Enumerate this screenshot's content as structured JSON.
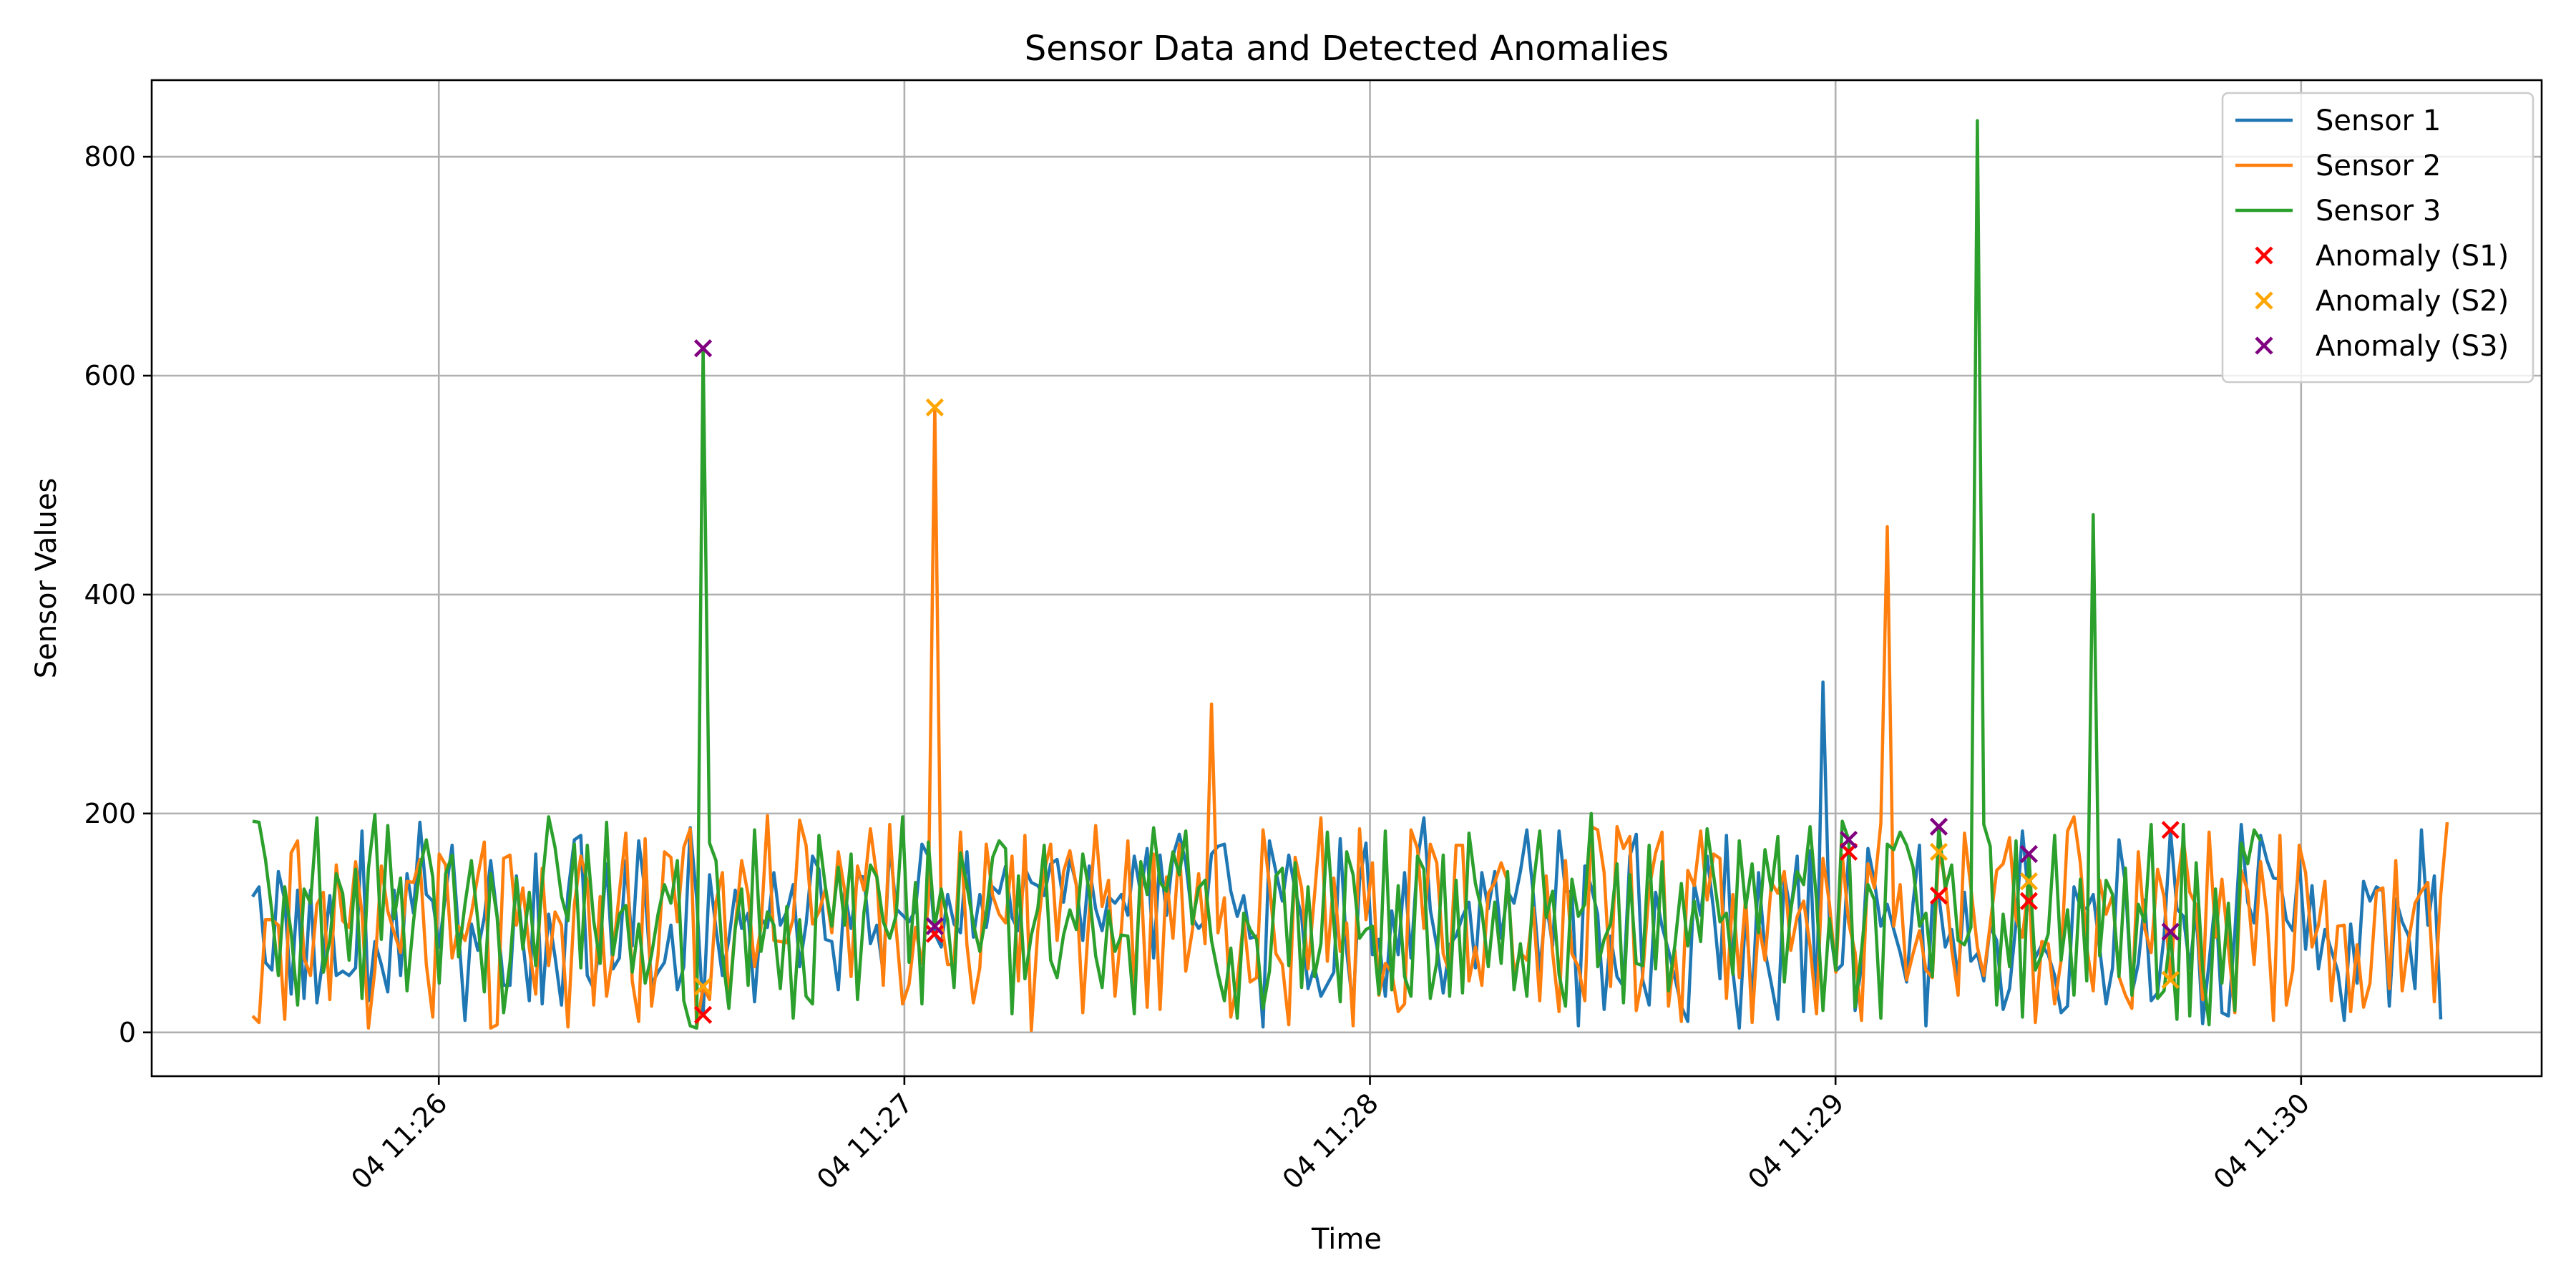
{
  "chart_data": {
    "type": "line",
    "title": "Sensor Data and Detected Anomalies",
    "xlabel": "Time",
    "ylabel": "Sensor Values",
    "x_start": "2024-01-04 11:25:36",
    "x_end": "2024-01-04 11:30:18",
    "xlim": [
      "2024-01-04 11:25:23",
      "2024-01-04 11:30:31"
    ],
    "ylim": [
      -40,
      870
    ],
    "x_ticks": [
      {
        "time": "2024-01-04 11:26:00",
        "label": "04 11:26"
      },
      {
        "time": "2024-01-04 11:27:00",
        "label": "04 11:27"
      },
      {
        "time": "2024-01-04 11:28:00",
        "label": "04 11:28"
      },
      {
        "time": "2024-01-04 11:29:00",
        "label": "04 11:29"
      },
      {
        "time": "2024-01-04 11:30:00",
        "label": "04 11:30"
      }
    ],
    "y_ticks": [
      0,
      200,
      400,
      600,
      800
    ],
    "grid": true,
    "legend_position": "top-right",
    "series": [
      {
        "name": "Sensor 1",
        "color": "#1f77b4",
        "values": [
          124,
          133,
          64,
          57,
          147,
          121,
          35,
          130,
          31,
          130,
          27,
          70,
          125,
          52,
          56,
          52,
          59,
          184,
          29,
          83,
          62,
          37,
          130,
          52,
          145,
          109,
          192,
          126,
          120,
          78,
          127,
          171,
          92,
          11,
          99,
          75,
          105,
          157,
          106,
          43,
          43,
          143,
          83,
          29,
          163,
          26,
          108,
          69,
          25,
          127,
          176,
          180,
          52,
          40,
          84,
          154,
          58,
          68,
          157,
          79,
          175,
          128,
          44,
          55,
          64,
          98,
          39,
          60,
          187,
          122,
          16,
          144,
          95,
          52,
          85,
          130,
          95,
          109,
          28,
          104,
          96,
          146,
          98,
          110,
          135,
          60,
          99,
          161,
          149,
          85,
          83,
          39,
          128,
          95,
          143,
          142,
          81,
          98,
          54,
          172,
          113,
          107,
          101,
          112,
          172,
          161,
          90,
          78,
          126,
          99,
          91,
          165,
          87,
          126,
          96,
          133,
          127,
          152,
          105,
          93,
          150,
          137,
          134,
          125,
          154,
          158,
          119,
          159,
          135,
          84,
          152,
          113,
          93,
          124,
          118,
          126,
          107,
          161,
          127,
          168,
          68,
          162,
          107,
          161,
          181,
          155,
          105,
          95,
          102,
          163,
          170,
          172,
          129,
          106,
          125,
          86,
          88,
          5,
          175,
          147,
          120,
          162,
          130,
          106,
          40,
          60,
          33,
          44,
          55,
          177,
          74,
          22,
          139,
          173,
          71,
          85,
          33,
          111,
          71,
          146,
          68,
          157,
          196,
          112,
          79,
          36,
          80,
          88,
          106,
          119,
          59,
          146,
          113,
          147,
          86,
          129,
          118,
          147,
          185,
          126,
          56,
          119,
          79,
          184,
          129,
          128,
          6,
          152,
          133,
          108,
          21,
          88,
          51,
          42,
          161,
          181,
          48,
          25,
          128,
          97,
          75,
          50,
          24,
          10,
          136,
          107,
          161,
          112,
          49,
          180,
          56,
          4,
          110,
          27,
          146,
          74,
          44,
          12,
          143,
          110,
          161,
          19,
          166,
          22,
          320,
          100,
          56,
          62,
          165,
          20,
          61,
          168,
          138,
          97,
          117,
          94,
          73,
          46,
          118,
          171,
          6,
          119,
          125,
          78,
          94,
          51,
          128,
          65,
          72,
          47,
          97,
          84,
          21,
          40,
          100,
          184,
          120,
          68,
          80,
          71,
          52,
          18,
          24,
          133,
          115,
          113,
          126,
          77,
          26,
          59,
          176,
          136,
          35,
          63,
          121,
          29,
          36,
          88,
          185,
          113,
          106,
          59,
          112,
          8,
          64,
          123,
          18,
          15,
          91,
          190,
          119,
          100,
          180,
          157,
          141,
          140,
          103,
          93,
          158,
          76,
          134,
          58,
          94,
          75,
          56,
          11,
          99,
          45,
          138,
          120,
          133,
          129,
          24,
          122,
          101,
          88,
          40,
          185,
          98,
          143,
          12
        ]
      },
      {
        "name": "Sensor 2",
        "color": "#ff7f0e",
        "values": [
          15,
          9,
          103,
          103,
          98,
          12,
          164,
          175,
          68,
          52,
          117,
          128,
          30,
          153,
          102,
          96,
          156,
          109,
          4,
          57,
          152,
          111,
          91,
          73,
          138,
          137,
          158,
          62,
          14,
          163,
          153,
          68,
          97,
          84,
          109,
          143,
          174,
          4,
          7,
          159,
          162,
          98,
          132,
          77,
          35,
          150,
          61,
          110,
          98,
          5,
          117,
          161,
          138,
          25,
          124,
          33,
          72,
          128,
          182,
          47,
          10,
          177,
          24,
          70,
          165,
          160,
          101,
          169,
          186,
          4,
          42,
          30,
          119,
          146,
          28,
          96,
          157,
          126,
          60,
          96,
          198,
          84,
          83,
          82,
          104,
          194,
          171,
          99,
          110,
          131,
          91,
          165,
          130,
          51,
          152,
          130,
          186,
          142,
          43,
          190,
          95,
          26,
          44,
          96,
          63,
          117,
          571,
          101,
          62,
          62,
          183,
          80,
          27,
          59,
          172,
          125,
          108,
          100,
          161,
          47,
          180,
          2,
          93,
          147,
          172,
          84,
          147,
          166,
          134,
          18,
          109,
          189,
          115,
          139,
          33,
          95,
          175,
          41,
          145,
          23,
          163,
          21,
          142,
          86,
          172,
          56,
          92,
          145,
          81,
          300,
          91,
          123,
          14,
          46,
          104,
          46,
          50,
          185,
          135,
          72,
          62,
          7,
          160,
          132,
          58,
          125,
          196,
          65,
          141,
          74,
          100,
          6,
          186,
          103,
          155,
          34,
          63,
          55,
          19,
          26,
          185,
          168,
          95,
          172,
          155,
          72,
          54,
          171,
          171,
          47,
          78,
          43,
          127,
          137,
          155,
          138,
          54,
          73,
          66,
          114,
          29,
          143,
          73,
          19,
          157,
          72,
          60,
          29,
          188,
          185,
          146,
          42,
          188,
          168,
          179,
          20,
          52,
          131,
          164,
          183,
          24,
          75,
          10,
          148,
          134,
          184,
          121,
          163,
          159,
          31,
          126,
          50,
          124,
          9,
          100,
          66,
          137,
          127,
          147,
          75,
          106,
          120,
          79,
          17,
          159,
          118,
          55,
          162,
          100,
          73,
          11,
          154,
          132,
          191,
          462,
          97,
          135,
          48,
          72,
          93,
          57,
          50,
          165,
          140,
          76,
          34,
          182,
          132,
          78,
          52,
          99,
          148,
          154,
          178,
          104,
          87,
          138,
          9,
          83,
          81,
          26,
          66,
          184,
          197,
          155,
          78,
          38,
          139,
          108,
          125,
          51,
          34,
          22,
          165,
          95,
          73,
          149,
          124,
          48,
          133,
          176,
          128,
          116,
          30,
          183,
          87,
          140,
          78,
          18,
          148,
          129,
          62,
          156,
          107,
          11,
          180,
          25,
          57,
          171,
          146,
          78,
          98,
          138,
          29,
          97,
          98,
          19,
          80,
          23,
          45,
          129,
          132,
          40,
          157,
          38,
          84,
          118,
          129,
          137,
          28,
          126,
          192
        ]
      },
      {
        "name": "Sensor 3",
        "color": "#2ca02c",
        "values": [
          193,
          192,
          158,
          110,
          52,
          133,
          91,
          25,
          131,
          118,
          196,
          55,
          84,
          145,
          127,
          66,
          149,
          31,
          150,
          199,
          85,
          189,
          104,
          141,
          38,
          101,
          150,
          176,
          142,
          45,
          145,
          162,
          69,
          117,
          157,
          102,
          37,
          145,
          105,
          18,
          64,
          141,
          76,
          128,
          61,
          136,
          197,
          169,
          124,
          102,
          172,
          59,
          171,
          102,
          63,
          192,
          71,
          108,
          116,
          55,
          99,
          45,
          71,
          108,
          135,
          118,
          157,
          29,
          6,
          4,
          625,
          173,
          157,
          71,
          22,
          95,
          131,
          43,
          185,
          74,
          110,
          98,
          40,
          115,
          13,
          103,
          33,
          26,
          180,
          133,
          97,
          151,
          98,
          163,
          30,
          110,
          153,
          142,
          101,
          86,
          107,
          197,
          64,
          137,
          26,
          174,
          97,
          131,
          102,
          41,
          164,
          134,
          99,
          74,
          108,
          160,
          175,
          168,
          17,
          143,
          49,
          89,
          113,
          171,
          66,
          50,
          89,
          112,
          94,
          163,
          129,
          70,
          41,
          111,
          74,
          89,
          88,
          17,
          156,
          126,
          187,
          137,
          129,
          165,
          144,
          184,
          99,
          132,
          139,
          84,
          54,
          29,
          77,
          13,
          109,
          94,
          85,
          22,
          56,
          143,
          150,
          61,
          155,
          41,
          133,
          51,
          81,
          183,
          100,
          28,
          165,
          144,
          86,
          94,
          97,
          35,
          184,
          39,
          134,
          51,
          33,
          161,
          149,
          31,
          64,
          162,
          33,
          139,
          36,
          182,
          136,
          111,
          60,
          119,
          63,
          147,
          39,
          81,
          33,
          134,
          184,
          105,
          129,
          53,
          24,
          140,
          106,
          117,
          200,
          60,
          85,
          99,
          154,
          27,
          144,
          63,
          61,
          171,
          58,
          156,
          38,
          80,
          136,
          79,
          120,
          83,
          186,
          144,
          101,
          109,
          53,
          175,
          114,
          154,
          91,
          167,
          130,
          179,
          46,
          112,
          147,
          135,
          188,
          121,
          20,
          104,
          57,
          193,
          176,
          23,
          75,
          135,
          121,
          13,
          172,
          167,
          183,
          171,
          151,
          97,
          109,
          51,
          188,
          131,
          153,
          84,
          80,
          96,
          833,
          190,
          170,
          25,
          108,
          60,
          175,
          14,
          163,
          57,
          71,
          90,
          180,
          66,
          112,
          34,
          140,
          47,
          473,
          70,
          139,
          126,
          51,
          150,
          34,
          117,
          101,
          190,
          31,
          38,
          92,
          12,
          190,
          15,
          155,
          58,
          7,
          131,
          45,
          118,
          20,
          173,
          154,
          185,
          175
        ]
      }
    ],
    "anomalies": [
      {
        "name": "Anomaly (S1)",
        "color": "#ff0000",
        "sensor": 0,
        "indices": [
          70,
          106,
          248,
          262,
          276,
          298
        ]
      },
      {
        "name": "Anomaly (S2)",
        "color": "#ffa500",
        "sensor": 1,
        "indices": [
          70,
          106,
          262,
          276,
          298
        ]
      },
      {
        "name": "Anomaly (S3)",
        "color": "#800080",
        "sensor": 2,
        "indices": [
          70,
          106,
          248,
          262,
          276,
          298
        ]
      }
    ]
  }
}
